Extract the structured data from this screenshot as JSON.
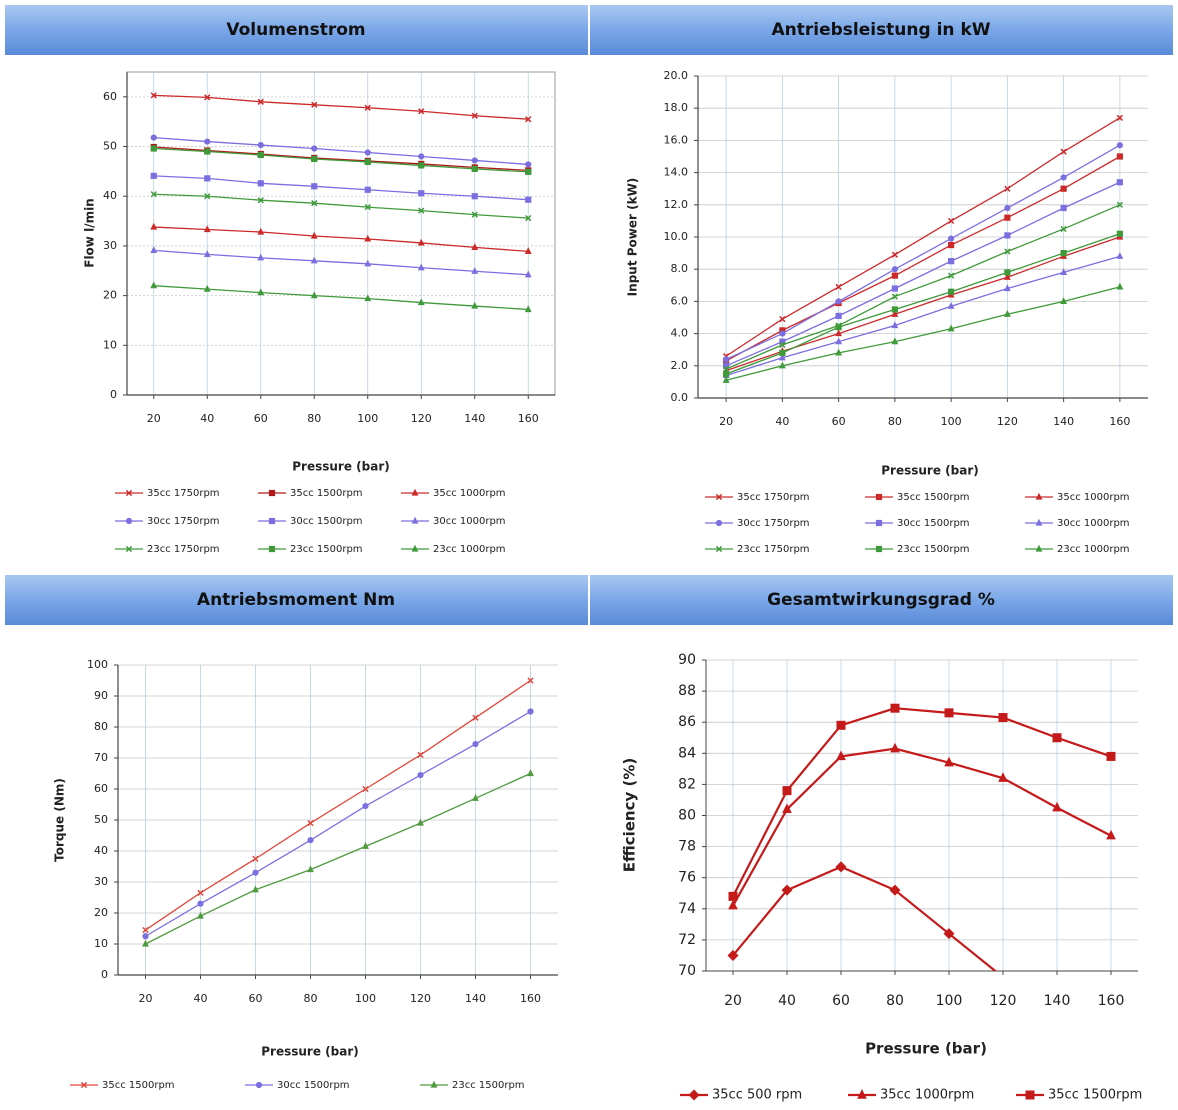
{
  "chart_data": [
    {
      "type": "line",
      "title": "Volumenstrom",
      "x_label": "Pressure (bar)",
      "y_label": "Flow l/min",
      "x": [
        20,
        40,
        60,
        80,
        100,
        120,
        140,
        160
      ],
      "xlim": [
        10,
        170
      ],
      "xticks": [
        20,
        40,
        60,
        80,
        100,
        120,
        140,
        160
      ],
      "ylim": [
        0,
        65
      ],
      "yticks": [
        0,
        10,
        20,
        30,
        40,
        50,
        60
      ],
      "grid": true,
      "series": [
        {
          "name": "35cc 1750rpm",
          "color": "#cc2a2a",
          "marker": "x",
          "values": [
            60.3,
            59.9,
            59.0,
            58.4,
            57.8,
            57.1,
            56.2,
            55.5
          ]
        },
        {
          "name": "35cc 1500rpm",
          "color": "#b01818",
          "marker": "square",
          "values": [
            49.9,
            49.2,
            48.5,
            47.7,
            47.1,
            46.5,
            45.8,
            45.2
          ]
        },
        {
          "name": "35cc 1000rpm",
          "color": "#cc2a2a",
          "marker": "triangle",
          "values": [
            33.8,
            33.3,
            32.8,
            32.0,
            31.4,
            30.6,
            29.7,
            28.9
          ]
        },
        {
          "name": "30cc 1750rpm",
          "color": "#7b6fe0",
          "marker": "circle",
          "values": [
            51.8,
            51.0,
            50.3,
            49.6,
            48.8,
            48.0,
            47.2,
            46.4
          ]
        },
        {
          "name": "30cc 1500rpm",
          "color": "#7b6fe0",
          "marker": "square",
          "values": [
            44.1,
            43.6,
            42.6,
            42.0,
            41.3,
            40.6,
            40.0,
            39.3
          ]
        },
        {
          "name": "30cc 1000rpm",
          "color": "#7b6fe0",
          "marker": "triangle",
          "values": [
            29.1,
            28.3,
            27.6,
            27.0,
            26.4,
            25.6,
            24.9,
            24.2
          ]
        },
        {
          "name": "23cc 1750rpm",
          "color": "#3f9a3a",
          "marker": "x",
          "values": [
            40.4,
            40.0,
            39.2,
            38.6,
            37.8,
            37.1,
            36.3,
            35.6
          ]
        },
        {
          "name": "23cc 1500rpm",
          "color": "#3f9a3a",
          "marker": "square",
          "values": [
            49.6,
            49.0,
            48.3,
            47.5,
            46.9,
            46.2,
            45.5,
            44.9
          ]
        },
        {
          "name": "23cc 1000rpm",
          "color": "#3f9a3a",
          "marker": "triangle",
          "values": [
            22.0,
            21.3,
            20.6,
            20.0,
            19.4,
            18.6,
            17.9,
            17.2
          ]
        }
      ]
    },
    {
      "type": "line",
      "title": "Antriebsleistung in kW",
      "x_label": "Pressure (bar)",
      "y_label": "Input Power (kW)",
      "x": [
        20,
        40,
        60,
        80,
        100,
        120,
        140,
        160
      ],
      "xlim": [
        10,
        170
      ],
      "xticks": [
        20,
        40,
        60,
        80,
        100,
        120,
        140,
        160
      ],
      "ylim": [
        0,
        20
      ],
      "yticks": [
        {
          "value": 0,
          "label": "0.0"
        },
        {
          "value": 2,
          "label": "2.0"
        },
        {
          "value": 4,
          "label": "4.0"
        },
        {
          "value": 6,
          "label": "6.0"
        },
        {
          "value": 8,
          "label": "8.0"
        },
        {
          "value": 10,
          "label": "10.0"
        },
        {
          "value": 12,
          "label": "12.0"
        },
        {
          "value": 14,
          "label": "14.0"
        },
        {
          "value": 16,
          "label": "16.0"
        },
        {
          "value": 18,
          "label": "18.0"
        },
        {
          "value": 20,
          "label": "20.0"
        }
      ],
      "grid": true,
      "series": [
        {
          "name": "35cc 1750rpm",
          "color": "#cc2a2a",
          "marker": "x",
          "values": [
            2.6,
            4.9,
            6.9,
            8.9,
            11.0,
            13.0,
            15.3,
            17.4
          ]
        },
        {
          "name": "35cc 1500rpm",
          "color": "#cc2a2a",
          "marker": "square",
          "values": [
            2.3,
            4.2,
            5.9,
            7.6,
            9.5,
            11.2,
            13.0,
            15.0
          ]
        },
        {
          "name": "35cc 1000rpm",
          "color": "#cc2a2a",
          "marker": "triangle",
          "values": [
            1.7,
            2.9,
            4.0,
            5.2,
            6.4,
            7.5,
            8.8,
            10.0
          ]
        },
        {
          "name": "30cc 1750rpm",
          "color": "#7b6fe0",
          "marker": "circle",
          "values": [
            2.4,
            4.0,
            6.0,
            8.0,
            9.9,
            11.8,
            13.7,
            15.7
          ]
        },
        {
          "name": "30cc 1500rpm",
          "color": "#7b6fe0",
          "marker": "square",
          "values": [
            2.0,
            3.5,
            5.1,
            6.8,
            8.5,
            10.1,
            11.8,
            13.4
          ]
        },
        {
          "name": "30cc 1000rpm",
          "color": "#7b6fe0",
          "marker": "triangle",
          "values": [
            1.4,
            2.5,
            3.5,
            4.5,
            5.7,
            6.8,
            7.8,
            8.8
          ]
        },
        {
          "name": "23cc 1750rpm",
          "color": "#3f9a3a",
          "marker": "x",
          "values": [
            1.8,
            3.3,
            4.5,
            6.3,
            7.6,
            9.1,
            10.5,
            12.0
          ]
        },
        {
          "name": "23cc 1500rpm",
          "color": "#3f9a3a",
          "marker": "square",
          "values": [
            1.5,
            2.8,
            4.4,
            5.5,
            6.6,
            7.8,
            9.0,
            10.2
          ]
        },
        {
          "name": "23cc 1000rpm",
          "color": "#3f9a3a",
          "marker": "triangle",
          "values": [
            1.1,
            2.0,
            2.8,
            3.5,
            4.3,
            5.2,
            6.0,
            6.9
          ]
        }
      ]
    },
    {
      "type": "line",
      "title": "Antriebsmoment Nm",
      "x_label": "Pressure (bar)",
      "y_label": "Torque (Nm)",
      "x": [
        20,
        40,
        60,
        80,
        100,
        120,
        140,
        160
      ],
      "xlim": [
        10,
        170
      ],
      "xticks": [
        20,
        40,
        60,
        80,
        100,
        120,
        140,
        160
      ],
      "ylim": [
        0,
        100
      ],
      "yticks": [
        0,
        10,
        20,
        30,
        40,
        50,
        60,
        70,
        80,
        90,
        100
      ],
      "grid": true,
      "series": [
        {
          "name": "35cc 1500rpm",
          "color": "#e0473a",
          "marker": "x",
          "values": [
            14.5,
            26.5,
            37.5,
            49.0,
            60.0,
            71.0,
            83.0,
            95.0
          ]
        },
        {
          "name": "30cc 1500rpm",
          "color": "#7b6fe0",
          "marker": "circle",
          "values": [
            12.5,
            23.0,
            33.0,
            43.5,
            54.5,
            64.5,
            74.5,
            85.0
          ]
        },
        {
          "name": "23cc 1500rpm",
          "color": "#4f9a3f",
          "marker": "triangle",
          "values": [
            10.0,
            19.0,
            27.5,
            34.0,
            41.5,
            49.0,
            57.0,
            65.0
          ]
        }
      ]
    },
    {
      "type": "line",
      "title": "Gesamtwirkungsgrad %",
      "x_label": "Pressure (bar)",
      "y_label": "Efficiency (%)",
      "x": [
        20,
        40,
        60,
        80,
        100,
        120,
        140,
        160
      ],
      "xlim": [
        10,
        170
      ],
      "xticks": [
        20,
        40,
        60,
        80,
        100,
        120,
        140,
        160
      ],
      "ylim": [
        70,
        90
      ],
      "yticks": [
        70,
        72,
        74,
        76,
        78,
        80,
        82,
        84,
        86,
        88,
        90
      ],
      "grid": true,
      "series": [
        {
          "name": "35cc 500 rpm",
          "color": "#c41a1a",
          "marker": "diamond",
          "values": [
            71.0,
            75.2,
            76.7,
            75.2,
            72.4,
            69.6,
            null,
            null
          ]
        },
        {
          "name": "35cc 1000rpm",
          "color": "#c41a1a",
          "marker": "triangle",
          "values": [
            74.2,
            80.4,
            83.8,
            84.3,
            83.4,
            82.4,
            80.5,
            78.7
          ]
        },
        {
          "name": "35cc 1500rpm",
          "color": "#c41a1a",
          "marker": "square",
          "values": [
            74.8,
            81.6,
            85.8,
            86.9,
            86.6,
            86.3,
            85.0,
            83.8
          ]
        }
      ]
    }
  ]
}
